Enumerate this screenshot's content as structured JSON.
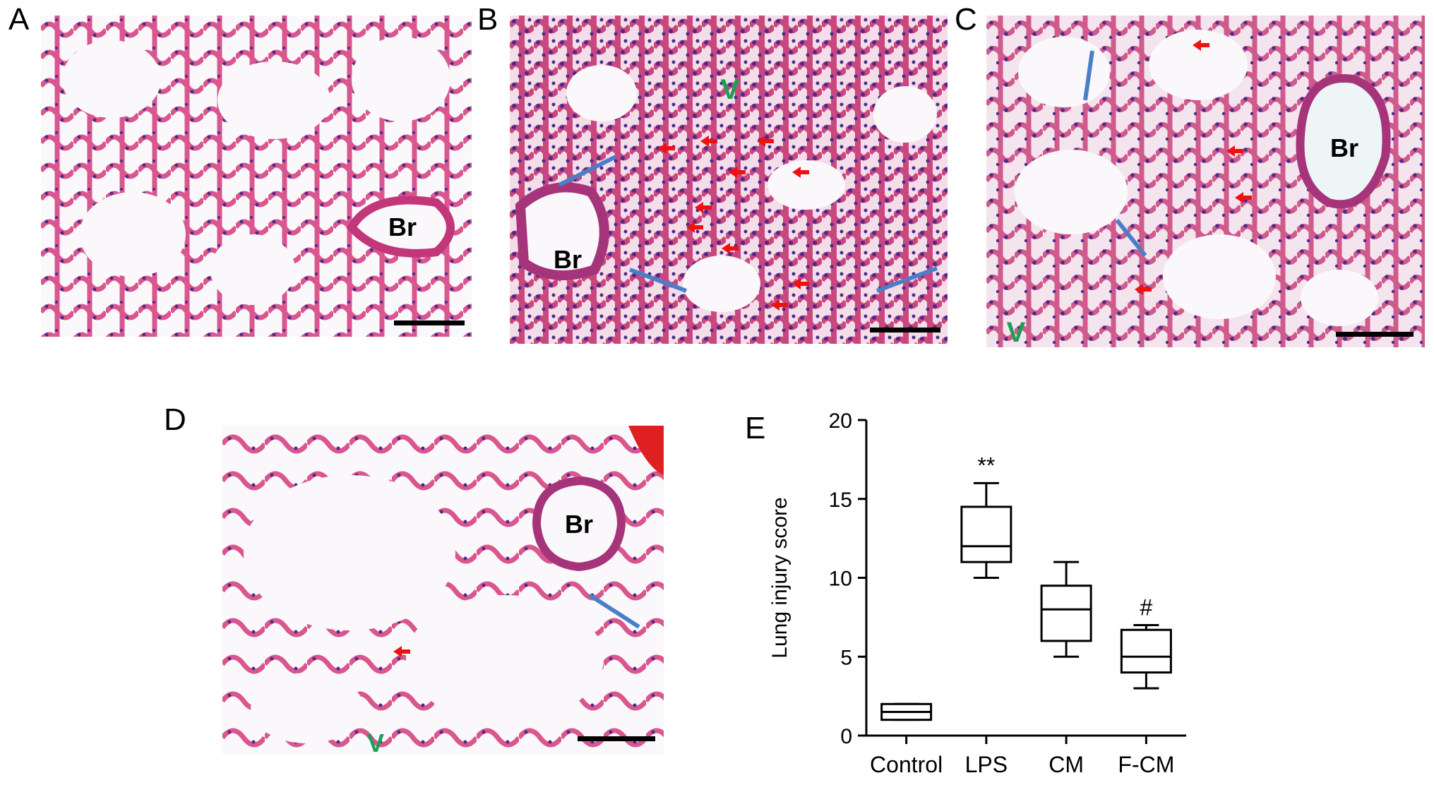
{
  "panels": {
    "A": {
      "label": "A",
      "annotations": {
        "br": "Br"
      }
    },
    "B": {
      "label": "B",
      "annotations": {
        "br": "Br",
        "v": "V"
      }
    },
    "C": {
      "label": "C",
      "annotations": {
        "br": "Br",
        "v": "V"
      }
    },
    "D": {
      "label": "D",
      "annotations": {
        "br": "Br",
        "v": "V"
      }
    },
    "E": {
      "label": "E"
    }
  },
  "colors": {
    "tissue_pink": "#d9568e",
    "nuclei_purple": "#4b2a8c",
    "lumen": "#fbf8fb",
    "arrow_red": "#ee1111",
    "arrow_blue": "#4a7fc8",
    "v_green": "#1aa055",
    "scale_bar": "#000000"
  },
  "chart_data": {
    "type": "box",
    "ylabel": "Lung injury score",
    "xlabel": "",
    "ylim": [
      0,
      20
    ],
    "yticks": [
      0,
      5,
      10,
      15,
      20
    ],
    "categories": [
      "Control",
      "LPS",
      "CM",
      "F-CM"
    ],
    "boxes": [
      {
        "category": "Control",
        "min": 1,
        "q1": 1,
        "median": 1.5,
        "q3": 2,
        "max": 2,
        "annotation": ""
      },
      {
        "category": "LPS",
        "min": 10,
        "q1": 11,
        "median": 12,
        "q3": 14.5,
        "max": 16,
        "annotation": "**"
      },
      {
        "category": "CM",
        "min": 5,
        "q1": 6,
        "median": 8,
        "q3": 9.5,
        "max": 11,
        "annotation": ""
      },
      {
        "category": "F-CM",
        "min": 3,
        "q1": 4,
        "median": 5,
        "q3": 6.7,
        "max": 7,
        "annotation": "#"
      }
    ]
  }
}
